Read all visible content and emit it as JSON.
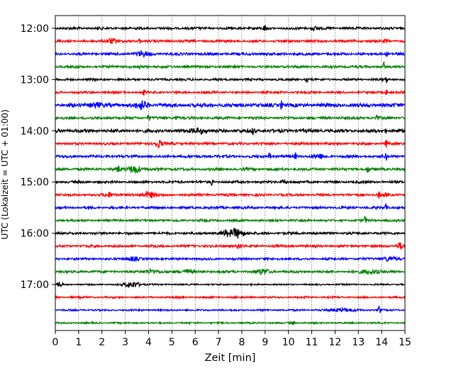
{
  "chart_data": {
    "type": "line",
    "title": "",
    "xlabel": "Zeit  [min]",
    "ylabel": "UTC (Lokalzeit = UTC + 01:00)",
    "xlim": [
      0,
      15
    ],
    "xticks": [
      "0",
      "1",
      "2",
      "3",
      "4",
      "5",
      "6",
      "7",
      "8",
      "9",
      "10",
      "11",
      "12",
      "13",
      "14",
      "15"
    ],
    "grid": "vertical dotted",
    "y_ticks": [
      {
        "label": "12:00",
        "row": 0
      },
      {
        "label": "13:00",
        "row": 4
      },
      {
        "label": "14:00",
        "row": 8
      },
      {
        "label": "15:00",
        "row": 12
      },
      {
        "label": "16:00",
        "row": 16
      },
      {
        "label": "17:00",
        "row": 20
      }
    ],
    "trace_interval_min": 15,
    "colors": [
      "#000000",
      "#ff0000",
      "#0000ff",
      "#008000"
    ],
    "traces": [
      {
        "start": "12:00",
        "color": "#000000",
        "amp": 0.2,
        "events": [
          {
            "t": 9.0,
            "a": 0.45,
            "w": 0.08
          },
          {
            "t": 11.1,
            "a": 0.25,
            "w": 0.15
          }
        ]
      },
      {
        "start": "12:15",
        "color": "#ff0000",
        "amp": 0.2,
        "events": [
          {
            "t": 2.4,
            "a": 0.4,
            "w": 0.2
          },
          {
            "t": 3.6,
            "a": 0.45,
            "w": 0.05
          },
          {
            "t": 14.2,
            "a": 0.3,
            "w": 0.08
          }
        ]
      },
      {
        "start": "12:30",
        "color": "#0000ff",
        "amp": 0.22,
        "events": [
          {
            "t": 3.7,
            "a": 0.3,
            "w": 0.3
          },
          {
            "t": 14.2,
            "a": 0.3,
            "w": 0.05
          }
        ]
      },
      {
        "start": "12:45",
        "color": "#008000",
        "amp": 0.2,
        "events": [
          {
            "t": 3.6,
            "a": 0.35,
            "w": 0.05
          },
          {
            "t": 14.1,
            "a": 0.6,
            "w": 0.04
          }
        ]
      },
      {
        "start": "13:00",
        "color": "#000000",
        "amp": 0.18,
        "events": [
          {
            "t": 10.8,
            "a": 0.4,
            "w": 0.05
          },
          {
            "t": 14.2,
            "a": 0.45,
            "w": 0.05
          }
        ]
      },
      {
        "start": "13:15",
        "color": "#ff0000",
        "amp": 0.18,
        "events": [
          {
            "t": 3.8,
            "a": 0.35,
            "w": 0.05
          },
          {
            "t": 14.2,
            "a": 0.45,
            "w": 0.05
          }
        ]
      },
      {
        "start": "13:30",
        "color": "#0000ff",
        "amp": 0.3,
        "events": [
          {
            "t": 1.7,
            "a": 0.35,
            "w": 0.25
          },
          {
            "t": 3.7,
            "a": 0.55,
            "w": 0.25
          },
          {
            "t": 9.7,
            "a": 0.7,
            "w": 0.05
          }
        ]
      },
      {
        "start": "13:45",
        "color": "#008000",
        "amp": 0.22,
        "events": [
          {
            "t": 4.0,
            "a": 0.55,
            "w": 0.05
          },
          {
            "t": 5.2,
            "a": 0.45,
            "w": 0.05
          },
          {
            "t": 13.8,
            "a": 0.55,
            "w": 0.05
          }
        ]
      },
      {
        "start": "14:00",
        "color": "#000000",
        "amp": 0.28,
        "events": [
          {
            "t": 6.1,
            "a": 0.35,
            "w": 0.3
          },
          {
            "t": 8.5,
            "a": 0.7,
            "w": 0.05
          },
          {
            "t": 14.2,
            "a": 0.3,
            "w": 0.05
          }
        ]
      },
      {
        "start": "14:15",
        "color": "#ff0000",
        "amp": 0.2,
        "events": [
          {
            "t": 4.4,
            "a": 0.55,
            "w": 0.2
          },
          {
            "t": 14.2,
            "a": 0.55,
            "w": 0.05
          }
        ]
      },
      {
        "start": "14:30",
        "color": "#0000ff",
        "amp": 0.22,
        "events": [
          {
            "t": 9.2,
            "a": 0.65,
            "w": 0.05
          },
          {
            "t": 10.3,
            "a": 0.45,
            "w": 0.05
          },
          {
            "t": 11.3,
            "a": 0.3,
            "w": 0.3
          },
          {
            "t": 14.2,
            "a": 0.5,
            "w": 0.05
          }
        ]
      },
      {
        "start": "14:45",
        "color": "#008000",
        "amp": 0.22,
        "events": [
          {
            "t": 2.7,
            "a": 0.4,
            "w": 0.1
          },
          {
            "t": 3.4,
            "a": 0.6,
            "w": 0.25
          },
          {
            "t": 13.4,
            "a": 0.45,
            "w": 0.05
          }
        ]
      },
      {
        "start": "15:00",
        "color": "#000000",
        "amp": 0.2,
        "events": [
          {
            "t": 6.7,
            "a": 0.45,
            "w": 0.05
          },
          {
            "t": 9.8,
            "a": 0.3,
            "w": 0.1
          }
        ]
      },
      {
        "start": "15:15",
        "color": "#ff0000",
        "amp": 0.2,
        "events": [
          {
            "t": 2.3,
            "a": 0.35,
            "w": 0.2
          },
          {
            "t": 4.0,
            "a": 0.45,
            "w": 0.3
          },
          {
            "t": 13.9,
            "a": 0.5,
            "w": 0.05
          },
          {
            "t": 14.2,
            "a": 0.45,
            "w": 0.05
          }
        ]
      },
      {
        "start": "15:30",
        "color": "#0000ff",
        "amp": 0.2,
        "events": [
          {
            "t": 14.2,
            "a": 0.75,
            "w": 0.05
          }
        ]
      },
      {
        "start": "15:45",
        "color": "#008000",
        "amp": 0.18,
        "events": [
          {
            "t": 13.3,
            "a": 0.8,
            "w": 0.04
          }
        ]
      },
      {
        "start": "16:00",
        "color": "#000000",
        "amp": 0.2,
        "events": [
          {
            "t": 7.8,
            "a": 0.7,
            "w": 0.3
          },
          {
            "t": 7.3,
            "a": 0.4,
            "w": 0.2
          }
        ]
      },
      {
        "start": "16:15",
        "color": "#ff0000",
        "amp": 0.2,
        "events": [
          {
            "t": 7.9,
            "a": 0.3,
            "w": 0.15
          },
          {
            "t": 14.8,
            "a": 0.45,
            "w": 0.15
          }
        ]
      },
      {
        "start": "16:30",
        "color": "#0000ff",
        "amp": 0.18,
        "events": [
          {
            "t": 3.3,
            "a": 0.3,
            "w": 0.25
          },
          {
            "t": 14.3,
            "a": 0.3,
            "w": 0.3
          }
        ]
      },
      {
        "start": "16:45",
        "color": "#008000",
        "amp": 0.2,
        "events": [
          {
            "t": 4.1,
            "a": 0.35,
            "w": 0.25
          },
          {
            "t": 5.6,
            "a": 0.3,
            "w": 0.25
          },
          {
            "t": 8.9,
            "a": 0.35,
            "w": 0.3
          },
          {
            "t": 13.5,
            "a": 0.3,
            "w": 0.4
          }
        ]
      },
      {
        "start": "17:00",
        "color": "#000000",
        "amp": 0.12,
        "events": [
          {
            "t": 0.2,
            "a": 0.45,
            "w": 0.1
          },
          {
            "t": 3.3,
            "a": 0.45,
            "w": 0.35
          }
        ]
      },
      {
        "start": "17:15",
        "color": "#ff0000",
        "amp": 0.15,
        "events": []
      },
      {
        "start": "17:30",
        "color": "#0000ff",
        "amp": 0.14,
        "events": [
          {
            "t": 12.3,
            "a": 0.25,
            "w": 0.5
          },
          {
            "t": 13.9,
            "a": 0.8,
            "w": 0.05
          }
        ]
      },
      {
        "start": "17:45",
        "color": "#008000",
        "amp": 0.13,
        "events": [
          {
            "t": 10.2,
            "a": 0.35,
            "w": 0.05
          }
        ]
      }
    ]
  }
}
